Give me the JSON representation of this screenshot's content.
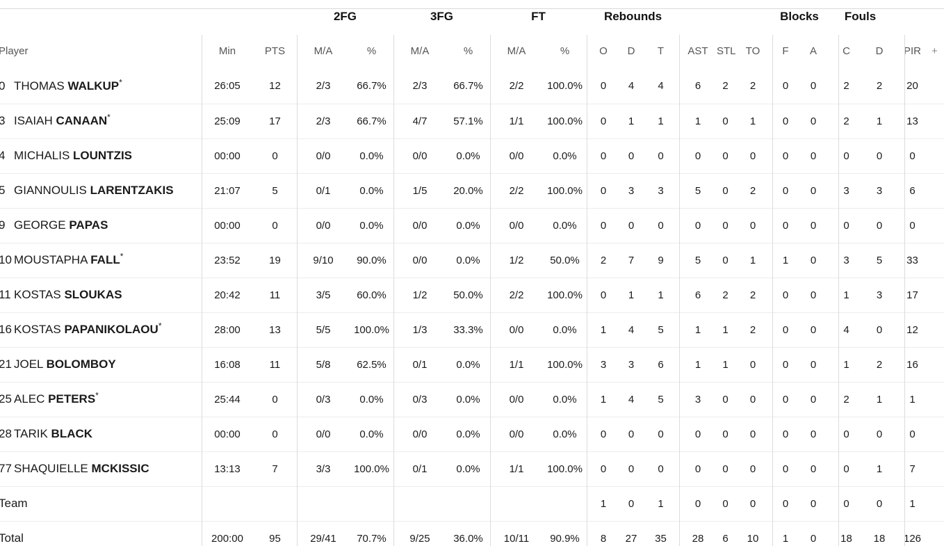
{
  "groups": {
    "fg2": "2FG",
    "fg3": "3FG",
    "ft": "FT",
    "rebounds": "Rebounds",
    "blocks": "Blocks",
    "fouls": "Fouls"
  },
  "headers": {
    "player": "Player",
    "min": "Min",
    "pts": "PTS",
    "fg2_ma": "M/A",
    "fg2_pct": "%",
    "fg3_ma": "M/A",
    "fg3_pct": "%",
    "ft_ma": "M/A",
    "ft_pct": "%",
    "reb_o": "O",
    "reb_d": "D",
    "reb_t": "T",
    "ast": "AST",
    "stl": "STL",
    "to": "TO",
    "blk_f": "F",
    "blk_a": "A",
    "foul_c": "C",
    "foul_d": "D",
    "pir": "PIR",
    "more": "+"
  },
  "players": [
    {
      "num": "0",
      "first": "THOMAS",
      "last": "WALKUP",
      "star": "*",
      "min": "26:05",
      "pts": "12",
      "fg2_ma": "2/3",
      "fg2_pct": "66.7%",
      "fg3_ma": "2/3",
      "fg3_pct": "66.7%",
      "ft_ma": "2/2",
      "ft_pct": "100.0%",
      "reb_o": "0",
      "reb_d": "4",
      "reb_t": "4",
      "ast": "6",
      "stl": "2",
      "to": "2",
      "blk_f": "0",
      "blk_a": "0",
      "foul_c": "2",
      "foul_d": "2",
      "pir": "20"
    },
    {
      "num": "3",
      "first": "ISAIAH",
      "last": "CANAAN",
      "star": "*",
      "min": "25:09",
      "pts": "17",
      "fg2_ma": "2/3",
      "fg2_pct": "66.7%",
      "fg3_ma": "4/7",
      "fg3_pct": "57.1%",
      "ft_ma": "1/1",
      "ft_pct": "100.0%",
      "reb_o": "0",
      "reb_d": "1",
      "reb_t": "1",
      "ast": "1",
      "stl": "0",
      "to": "1",
      "blk_f": "0",
      "blk_a": "0",
      "foul_c": "2",
      "foul_d": "1",
      "pir": "13"
    },
    {
      "num": "4",
      "first": "MICHALIS",
      "last": "LOUNTZIS",
      "star": "",
      "min": "00:00",
      "pts": "0",
      "fg2_ma": "0/0",
      "fg2_pct": "0.0%",
      "fg3_ma": "0/0",
      "fg3_pct": "0.0%",
      "ft_ma": "0/0",
      "ft_pct": "0.0%",
      "reb_o": "0",
      "reb_d": "0",
      "reb_t": "0",
      "ast": "0",
      "stl": "0",
      "to": "0",
      "blk_f": "0",
      "blk_a": "0",
      "foul_c": "0",
      "foul_d": "0",
      "pir": "0"
    },
    {
      "num": "5",
      "first": "GIANNOULIS",
      "last": "LARENTZAKIS",
      "star": "",
      "min": "21:07",
      "pts": "5",
      "fg2_ma": "0/1",
      "fg2_pct": "0.0%",
      "fg3_ma": "1/5",
      "fg3_pct": "20.0%",
      "ft_ma": "2/2",
      "ft_pct": "100.0%",
      "reb_o": "0",
      "reb_d": "3",
      "reb_t": "3",
      "ast": "5",
      "stl": "0",
      "to": "2",
      "blk_f": "0",
      "blk_a": "0",
      "foul_c": "3",
      "foul_d": "3",
      "pir": "6"
    },
    {
      "num": "9",
      "first": "GEORGE",
      "last": "PAPAS",
      "star": "",
      "min": "00:00",
      "pts": "0",
      "fg2_ma": "0/0",
      "fg2_pct": "0.0%",
      "fg3_ma": "0/0",
      "fg3_pct": "0.0%",
      "ft_ma": "0/0",
      "ft_pct": "0.0%",
      "reb_o": "0",
      "reb_d": "0",
      "reb_t": "0",
      "ast": "0",
      "stl": "0",
      "to": "0",
      "blk_f": "0",
      "blk_a": "0",
      "foul_c": "0",
      "foul_d": "0",
      "pir": "0"
    },
    {
      "num": "10",
      "first": "MOUSTAPHA",
      "last": "FALL",
      "star": "*",
      "min": "23:52",
      "pts": "19",
      "fg2_ma": "9/10",
      "fg2_pct": "90.0%",
      "fg3_ma": "0/0",
      "fg3_pct": "0.0%",
      "ft_ma": "1/2",
      "ft_pct": "50.0%",
      "reb_o": "2",
      "reb_d": "7",
      "reb_t": "9",
      "ast": "5",
      "stl": "0",
      "to": "1",
      "blk_f": "1",
      "blk_a": "0",
      "foul_c": "3",
      "foul_d": "5",
      "pir": "33"
    },
    {
      "num": "11",
      "first": "KOSTAS",
      "last": "SLOUKAS",
      "star": "",
      "min": "20:42",
      "pts": "11",
      "fg2_ma": "3/5",
      "fg2_pct": "60.0%",
      "fg3_ma": "1/2",
      "fg3_pct": "50.0%",
      "ft_ma": "2/2",
      "ft_pct": "100.0%",
      "reb_o": "0",
      "reb_d": "1",
      "reb_t": "1",
      "ast": "6",
      "stl": "2",
      "to": "2",
      "blk_f": "0",
      "blk_a": "0",
      "foul_c": "1",
      "foul_d": "3",
      "pir": "17"
    },
    {
      "num": "16",
      "first": "KOSTAS",
      "last": "PAPANIKOLAOU",
      "star": "*",
      "min": "28:00",
      "pts": "13",
      "fg2_ma": "5/5",
      "fg2_pct": "100.0%",
      "fg3_ma": "1/3",
      "fg3_pct": "33.3%",
      "ft_ma": "0/0",
      "ft_pct": "0.0%",
      "reb_o": "1",
      "reb_d": "4",
      "reb_t": "5",
      "ast": "1",
      "stl": "1",
      "to": "2",
      "blk_f": "0",
      "blk_a": "0",
      "foul_c": "4",
      "foul_d": "0",
      "pir": "12"
    },
    {
      "num": "21",
      "first": "JOEL",
      "last": "BOLOMBOY",
      "star": "",
      "min": "16:08",
      "pts": "11",
      "fg2_ma": "5/8",
      "fg2_pct": "62.5%",
      "fg3_ma": "0/1",
      "fg3_pct": "0.0%",
      "ft_ma": "1/1",
      "ft_pct": "100.0%",
      "reb_o": "3",
      "reb_d": "3",
      "reb_t": "6",
      "ast": "1",
      "stl": "1",
      "to": "0",
      "blk_f": "0",
      "blk_a": "0",
      "foul_c": "1",
      "foul_d": "2",
      "pir": "16"
    },
    {
      "num": "25",
      "first": "ALEC",
      "last": "PETERS",
      "star": "*",
      "min": "25:44",
      "pts": "0",
      "fg2_ma": "0/3",
      "fg2_pct": "0.0%",
      "fg3_ma": "0/3",
      "fg3_pct": "0.0%",
      "ft_ma": "0/0",
      "ft_pct": "0.0%",
      "reb_o": "1",
      "reb_d": "4",
      "reb_t": "5",
      "ast": "3",
      "stl": "0",
      "to": "0",
      "blk_f": "0",
      "blk_a": "0",
      "foul_c": "2",
      "foul_d": "1",
      "pir": "1"
    },
    {
      "num": "28",
      "first": "TARIK",
      "last": "BLACK",
      "star": "",
      "min": "00:00",
      "pts": "0",
      "fg2_ma": "0/0",
      "fg2_pct": "0.0%",
      "fg3_ma": "0/0",
      "fg3_pct": "0.0%",
      "ft_ma": "0/0",
      "ft_pct": "0.0%",
      "reb_o": "0",
      "reb_d": "0",
      "reb_t": "0",
      "ast": "0",
      "stl": "0",
      "to": "0",
      "blk_f": "0",
      "blk_a": "0",
      "foul_c": "0",
      "foul_d": "0",
      "pir": "0"
    },
    {
      "num": "77",
      "first": "SHAQUIELLE",
      "last": "MCKISSIC",
      "star": "",
      "min": "13:13",
      "pts": "7",
      "fg2_ma": "3/3",
      "fg2_pct": "100.0%",
      "fg3_ma": "0/1",
      "fg3_pct": "0.0%",
      "ft_ma": "1/1",
      "ft_pct": "100.0%",
      "reb_o": "0",
      "reb_d": "0",
      "reb_t": "0",
      "ast": "0",
      "stl": "0",
      "to": "0",
      "blk_f": "0",
      "blk_a": "0",
      "foul_c": "0",
      "foul_d": "1",
      "pir": "7"
    }
  ],
  "team": {
    "label": "Team",
    "reb_o": "1",
    "reb_d": "0",
    "reb_t": "1",
    "ast": "0",
    "stl": "0",
    "to": "0",
    "blk_f": "0",
    "blk_a": "0",
    "foul_c": "0",
    "foul_d": "0",
    "pir": "1"
  },
  "total": {
    "label": "Total",
    "min": "200:00",
    "pts": "95",
    "fg2_ma": "29/41",
    "fg2_pct": "70.7%",
    "fg3_ma": "9/25",
    "fg3_pct": "36.0%",
    "ft_ma": "10/11",
    "ft_pct": "90.9%",
    "reb_o": "8",
    "reb_d": "27",
    "reb_t": "35",
    "ast": "28",
    "stl": "6",
    "to": "10",
    "blk_f": "1",
    "blk_a": "0",
    "foul_c": "18",
    "foul_d": "18",
    "pir": "126"
  }
}
